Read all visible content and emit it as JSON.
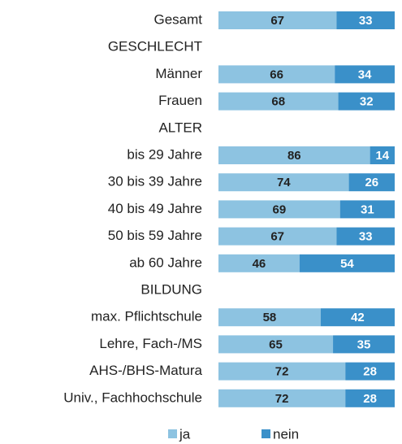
{
  "chart_data": {
    "type": "bar",
    "orientation": "horizontal",
    "stacked": true,
    "categories": [
      "Gesamt",
      "GESCHLECHT",
      "Männer",
      "Frauen",
      "ALTER",
      "bis 29 Jahre",
      "30 bis 39 Jahre",
      "40 bis 49 Jahre",
      "50 bis 59 Jahre",
      "ab 60 Jahre",
      "BILDUNG",
      "max. Pflichtschule",
      "Lehre, Fach-/MS",
      "AHS-/BHS-Matura",
      "Univ., Fachhochschule"
    ],
    "series": [
      {
        "name": "ja",
        "color": "#8dc3e1",
        "values": [
          67,
          null,
          66,
          68,
          null,
          86,
          74,
          69,
          67,
          46,
          null,
          58,
          65,
          72,
          72
        ]
      },
      {
        "name": "nein",
        "color": "#3a90c9",
        "values": [
          33,
          null,
          34,
          32,
          null,
          14,
          26,
          31,
          33,
          54,
          null,
          42,
          35,
          28,
          28
        ]
      }
    ]
  }
}
